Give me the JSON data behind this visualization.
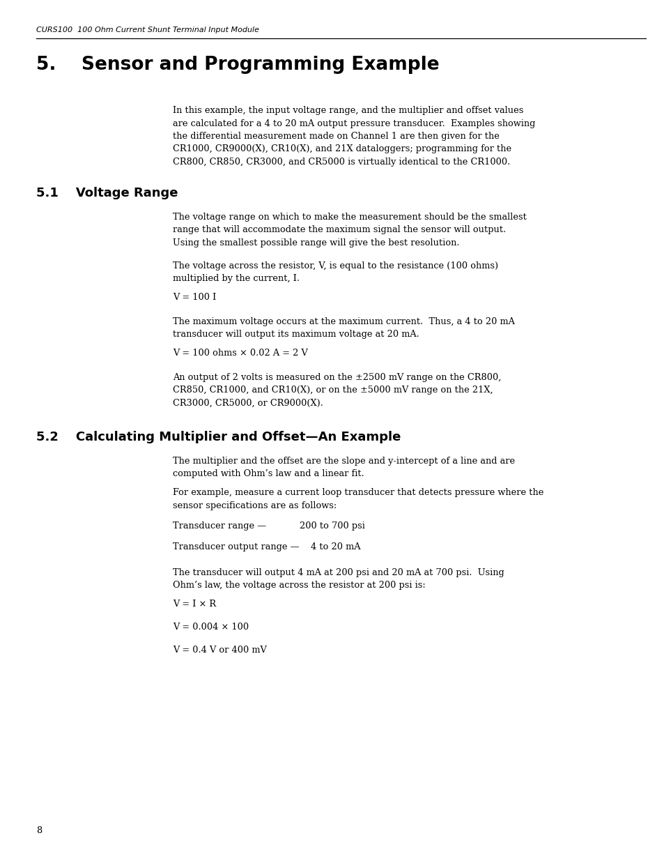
{
  "bg_color": "#ffffff",
  "header_italic": "CURS100  100 Ohm Current Shunt Terminal Input Module",
  "page_number": "8",
  "section_title": "5.    Sensor and Programming Example",
  "intro_text": "In this example, the input voltage range, and the multiplier and offset values\nare calculated for a 4 to 20 mA output pressure transducer.  Examples showing\nthe differential measurement made on Channel 1 are then given for the\nCR1000, CR9000(X), CR10(X), and 21X dataloggers; programming for the\nCR800, CR850, CR3000, and CR5000 is virtually identical to the CR1000.",
  "sub1_title": "5.1    Voltage Range",
  "sub1_p1": "The voltage range on which to make the measurement should be the smallest\nrange that will accommodate the maximum signal the sensor will output.\nUsing the smallest possible range will give the best resolution.",
  "sub1_p2": "The voltage across the resistor, V, is equal to the resistance (100 ohms)\nmultiplied by the current, I.",
  "sub1_eq1": "V = 100 I",
  "sub1_p3": "The maximum voltage occurs at the maximum current.  Thus, a 4 to 20 mA\ntransducer will output its maximum voltage at 20 mA.",
  "sub1_eq2": "V = 100 ohms × 0.02 A = 2 V",
  "sub1_p4": "An output of 2 volts is measured on the ±2500 mV range on the CR800,\nCR850, CR1000, and CR10(X), or on the ±5000 mV range on the 21X,\nCR3000, CR5000, or CR9000(X).",
  "sub2_title": "5.2    Calculating Multiplier and Offset—An Example",
  "sub2_p1": "The multiplier and the offset are the slope and y-intercept of a line and are\ncomputed with Ohm’s law and a linear fit.",
  "sub2_p2": "For example, measure a current loop transducer that detects pressure where the\nsensor specifications are as follows:",
  "sub2_row1_label": "Transducer range —",
  "sub2_row1_val": "200 to 700 psi",
  "sub2_row2": "Transducer output range —    4 to 20 mA",
  "sub2_p3": "The transducer will output 4 mA at 200 psi and 20 mA at 700 psi.  Using\nOhm’s law, the voltage across the resistor at 200 psi is:",
  "sub2_eq1": "V = I × R",
  "sub2_eq2": "V = 0.004 × 100",
  "sub2_eq3": "V = 0.4 V or 400 mV"
}
